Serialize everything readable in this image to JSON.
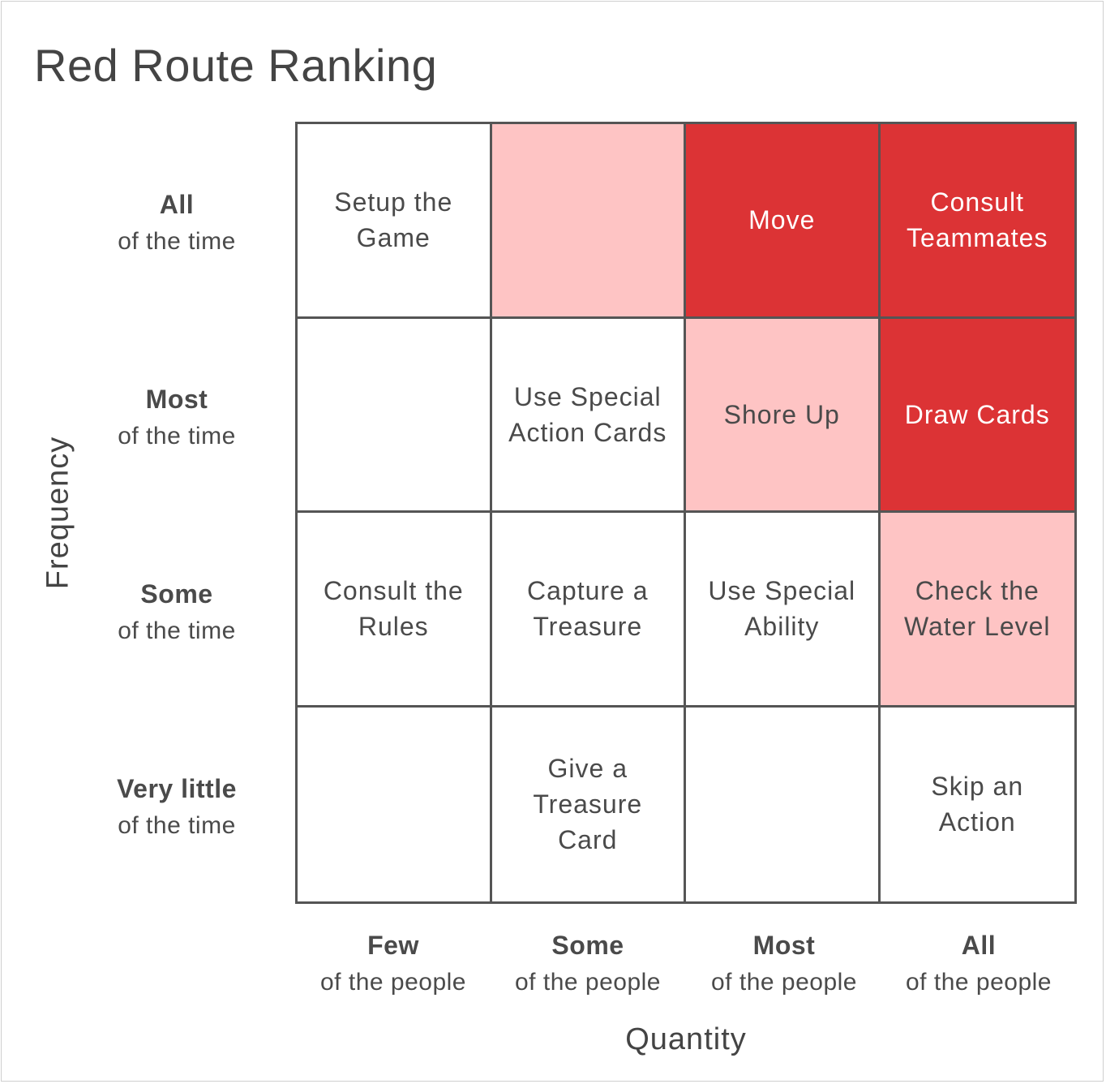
{
  "title": "Red Route Ranking",
  "axes": {
    "x_label": "Quantity",
    "y_label": "Frequency"
  },
  "rows": [
    {
      "strong": "All",
      "sub": "of the time"
    },
    {
      "strong": "Most",
      "sub": "of the time"
    },
    {
      "strong": "Some",
      "sub": "of the time"
    },
    {
      "strong": "Very little",
      "sub": "of the time"
    }
  ],
  "columns": [
    {
      "strong": "Few",
      "sub": "of the people"
    },
    {
      "strong": "Some",
      "sub": "of the people"
    },
    {
      "strong": "Most",
      "sub": "of the people"
    },
    {
      "strong": "All",
      "sub": "of the people"
    }
  ],
  "colors": {
    "none": "#ffffff",
    "low": "#fec4c4",
    "high": "#dc3335",
    "grid_line": "#555555"
  },
  "cells": [
    [
      {
        "text": "Setup the\nGame",
        "level": "none"
      },
      {
        "text": "",
        "level": "low"
      },
      {
        "text": "Move",
        "level": "high"
      },
      {
        "text": "Consult\nTeammates",
        "level": "high"
      }
    ],
    [
      {
        "text": "",
        "level": "none"
      },
      {
        "text": "Use Special\nAction Cards",
        "level": "none"
      },
      {
        "text": "Shore Up",
        "level": "low"
      },
      {
        "text": "Draw Cards",
        "level": "high"
      }
    ],
    [
      {
        "text": "Consult the\nRules",
        "level": "none"
      },
      {
        "text": "Capture a\nTreasure",
        "level": "none"
      },
      {
        "text": "Use Special\nAbility",
        "level": "none"
      },
      {
        "text": "Check the\nWater Level",
        "level": "low"
      }
    ],
    [
      {
        "text": "",
        "level": "none"
      },
      {
        "text": "Give a\nTreasure\nCard",
        "level": "none"
      },
      {
        "text": "",
        "level": "none"
      },
      {
        "text": "Skip an\nAction",
        "level": "none"
      }
    ]
  ]
}
